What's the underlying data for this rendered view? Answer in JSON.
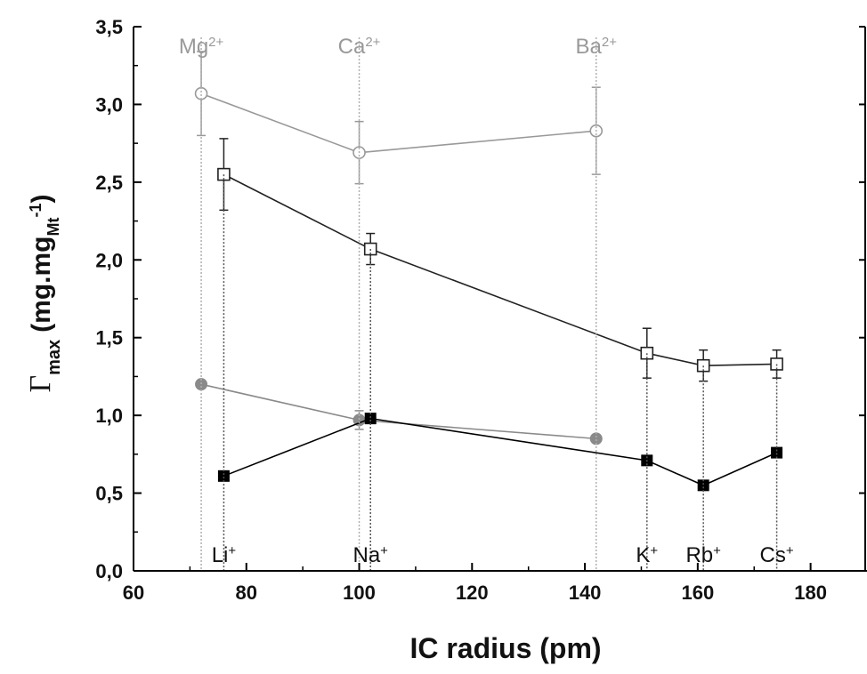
{
  "chart_data": {
    "type": "scatter",
    "xlabel": "IC radius (pm)",
    "ylabel": {
      "symbol": "Γ",
      "symbol_sub": "max",
      "unit_prefix": "(mg.mg",
      "unit_sub": "Mt",
      "unit_sup": "-1",
      "unit_suffix": ")"
    },
    "xlim": [
      60,
      190
    ],
    "ylim": [
      0,
      3.5
    ],
    "xticks": [
      60,
      80,
      100,
      120,
      140,
      160,
      180
    ],
    "yticks": [
      0,
      0.5,
      1.0,
      1.5,
      2.0,
      2.5,
      3.0,
      3.5
    ],
    "xtick_labels": [
      "60",
      "80",
      "100",
      "120",
      "140",
      "160",
      "180"
    ],
    "ytick_labels": [
      "0,0",
      "0,5",
      "1,0",
      "1,5",
      "2,0",
      "2,5",
      "3,0",
      "3,5"
    ],
    "grid": false,
    "series": [
      {
        "marker": "open-circle",
        "color": "#999999",
        "x": [
          72,
          100,
          142
        ],
        "y": [
          3.07,
          2.69,
          2.83
        ],
        "err": [
          0.27,
          0.2,
          0.28
        ]
      },
      {
        "marker": "open-square",
        "color": "#222222",
        "x": [
          76,
          102,
          151,
          161,
          174
        ],
        "y": [
          2.55,
          2.07,
          1.4,
          1.32,
          1.33
        ],
        "err": [
          0.23,
          0.1,
          0.16,
          0.1,
          0.09
        ]
      },
      {
        "marker": "filled-circle",
        "color": "#8a8a8a",
        "x": [
          72,
          100,
          142
        ],
        "y": [
          1.2,
          0.97,
          0.85
        ],
        "err": [
          0,
          0.06,
          0
        ]
      },
      {
        "marker": "filled-square",
        "color": "#000000",
        "x": [
          76,
          102,
          151,
          161,
          174
        ],
        "y": [
          0.61,
          0.98,
          0.71,
          0.55,
          0.76
        ],
        "err": [
          0,
          0,
          0,
          0,
          0
        ]
      }
    ],
    "annotations": {
      "divalent": [
        {
          "ion": "Mg",
          "charge": "2+",
          "x": 72
        },
        {
          "ion": "Ca",
          "charge": "2+",
          "x": 100
        },
        {
          "ion": "Ba",
          "charge": "2+",
          "x": 142
        }
      ],
      "monovalent": [
        {
          "ion": "Li",
          "charge": "+",
          "x": 76
        },
        {
          "ion": "Na",
          "charge": "+",
          "x": 102
        },
        {
          "ion": "K",
          "charge": "+",
          "x": 151
        },
        {
          "ion": "Rb",
          "charge": "+",
          "x": 161
        },
        {
          "ion": "Cs",
          "charge": "+",
          "x": 174
        }
      ],
      "divalent_color": "#999999",
      "monovalent_color": "#111111"
    }
  }
}
